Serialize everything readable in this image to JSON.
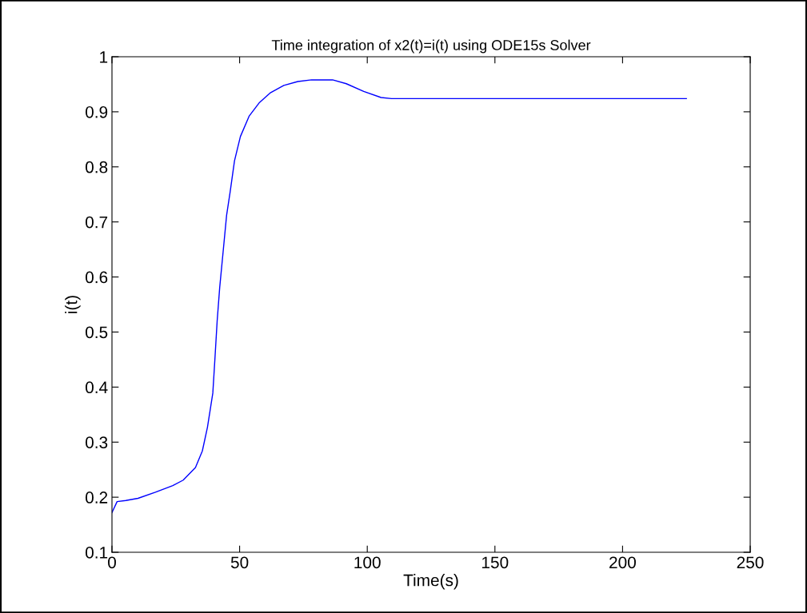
{
  "chart_data": {
    "type": "line",
    "title": "Time integration of x2(t)=i(t) using ODE15s Solver",
    "xlabel": "Time(s)",
    "ylabel": "i(t)",
    "x": [
      0,
      2,
      5.4,
      10.2,
      17,
      23.8,
      27.9,
      32.7,
      35.4,
      37.4,
      39.5,
      40.4,
      41.2,
      42.2,
      43.5,
      44.9,
      46.3,
      48,
      50.3,
      53.7,
      57.8,
      61.9,
      67.3,
      72.8,
      78.2,
      86.4,
      91.8,
      98.6,
      105.4,
      109.5,
      225
    ],
    "series": [
      {
        "color": "#0000ff",
        "values": [
          0.172,
          0.192,
          0.194,
          0.198,
          0.209,
          0.221,
          0.231,
          0.254,
          0.284,
          0.327,
          0.389,
          0.457,
          0.52,
          0.581,
          0.644,
          0.712,
          0.755,
          0.811,
          0.855,
          0.892,
          0.917,
          0.934,
          0.948,
          0.955,
          0.958,
          0.958,
          0.951,
          0.937,
          0.926,
          0.924,
          0.924
        ]
      }
    ],
    "xlim": [
      0,
      250
    ],
    "xticks": [
      0,
      50,
      100,
      150,
      200,
      250
    ],
    "ylim": [
      0.1,
      1
    ],
    "yticks": [
      0.1,
      0.2,
      0.3,
      0.4,
      0.5,
      0.6,
      0.7,
      0.8,
      0.9,
      1
    ],
    "grid": false,
    "legend": false
  }
}
